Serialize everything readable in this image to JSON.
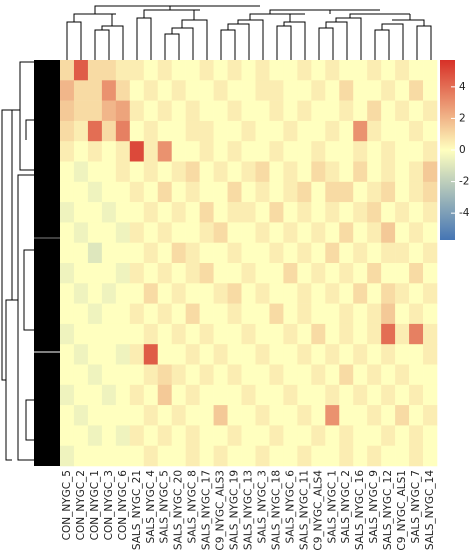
{
  "chart_data": {
    "type": "heatmap",
    "columns": [
      "CON_NYGC_5",
      "CON_NYGC_2",
      "CON_NYGC_1",
      "CON_NYGC_3",
      "CON_NYGC_6",
      "SALS_NYGC_21",
      "SALS_NYGC_4",
      "SALS_NYGC_5",
      "SALS_NYGC_20",
      "SALS_NYGC_8",
      "SALS_NYGC_17",
      "C9_NYGC_ALS3",
      "SALS_NYGC_19",
      "SALS_NYGC_13",
      "SALS_NYGC_3",
      "SALS_NYGC_18",
      "SALS_NYGC_6",
      "SALS_NYGC_11",
      "C9_NYGC_ALS4",
      "SALS_NYGC_1",
      "SALS_NYGC_2",
      "SALS_NYGC_16",
      "SALS_NYGC_9",
      "SALS_NYGC_12",
      "C9_NYGC_ALS1",
      "SALS_NYGC_7",
      "SALS_NYGC_14"
    ],
    "values": [
      [
        1,
        4.5,
        1,
        1,
        0.5,
        0.5,
        0,
        0.5,
        0,
        0,
        0.5,
        0,
        0.5,
        0,
        0.5,
        0,
        0,
        0.5,
        0,
        0.5,
        0,
        0,
        0.5,
        0,
        0.5,
        0,
        0
      ],
      [
        2,
        1,
        1,
        3,
        1,
        0,
        0.5,
        0,
        0.5,
        0,
        0,
        0.5,
        0,
        0,
        0.5,
        0.5,
        0,
        0,
        0.5,
        0,
        1,
        0,
        0,
        0.5,
        0,
        1,
        0
      ],
      [
        1.5,
        1,
        1,
        2,
        2.5,
        0.5,
        0,
        0.5,
        0,
        0.5,
        0,
        0,
        0.5,
        0,
        0,
        0.5,
        0,
        0.5,
        0,
        0,
        0.5,
        0,
        1,
        0,
        0.5,
        0,
        0.5
      ],
      [
        1,
        0.5,
        4,
        1,
        3.5,
        0,
        0.5,
        0,
        0,
        0.5,
        0.5,
        0,
        0,
        0.5,
        0,
        0,
        0.5,
        0,
        0,
        0.5,
        0,
        3,
        0.5,
        0,
        0,
        0.5,
        0
      ],
      [
        0.5,
        0,
        0.5,
        0,
        0.5,
        5,
        0.5,
        3,
        0,
        0,
        0.5,
        0,
        0.5,
        0,
        0,
        0.5,
        0,
        0,
        0.5,
        0,
        0,
        0.5,
        0,
        0.5,
        0,
        0,
        0.5
      ],
      [
        0,
        -0.5,
        0,
        0,
        0.5,
        0,
        0.5,
        0,
        0.5,
        1,
        0,
        0.5,
        0,
        0.5,
        1,
        0,
        0.5,
        0,
        1,
        0.5,
        0,
        1,
        0,
        0.5,
        0,
        0.5,
        1.5
      ],
      [
        0,
        0,
        -0.5,
        0,
        0,
        0.5,
        0,
        1,
        0,
        0.5,
        0,
        0,
        1,
        0,
        0.5,
        0,
        0.5,
        1,
        0,
        1,
        1,
        0,
        0.5,
        1,
        0,
        0.5,
        1
      ],
      [
        -0.5,
        0,
        0,
        -0.5,
        0,
        0,
        0.5,
        0,
        0.5,
        0,
        1,
        0,
        0.5,
        0.5,
        0,
        1,
        0,
        0.5,
        0,
        0.5,
        0,
        0.5,
        1,
        0,
        0.5,
        0,
        0.5
      ],
      [
        0,
        -0.5,
        0,
        0,
        -0.5,
        0.5,
        0,
        0.5,
        0,
        0,
        0.5,
        1,
        0,
        0,
        0.5,
        0,
        0.5,
        0,
        0.5,
        0,
        1,
        0,
        0.5,
        1.5,
        0,
        0.5,
        0
      ],
      [
        0,
        0,
        -1,
        0,
        0,
        0,
        0.5,
        0,
        1,
        0.5,
        0,
        0,
        0.5,
        0,
        0,
        0.5,
        0,
        0.5,
        0,
        1,
        0,
        0.5,
        0,
        0.5,
        0.5,
        0,
        0.5
      ],
      [
        -0.5,
        0,
        0,
        0,
        -0.5,
        0.5,
        0,
        0.5,
        0,
        0.5,
        1,
        0,
        0,
        0.5,
        0,
        0,
        1,
        0,
        0.5,
        0,
        0.5,
        0,
        1,
        0,
        0,
        1,
        0
      ],
      [
        0,
        -0.5,
        0,
        -0.5,
        0,
        0,
        1,
        0,
        0.5,
        0,
        0,
        0.5,
        1,
        0,
        0.5,
        0,
        0,
        0.5,
        0,
        0.5,
        0,
        1,
        0,
        1,
        0.5,
        0,
        0.5
      ],
      [
        0,
        0,
        -0.5,
        0,
        0,
        0.5,
        0,
        0.5,
        0,
        1,
        0,
        0,
        0.5,
        0,
        0,
        1,
        0,
        0.5,
        0,
        0,
        0.5,
        0,
        0.5,
        1.5,
        0,
        0.5,
        0
      ],
      [
        -0.5,
        0,
        0,
        0,
        0,
        0,
        0.5,
        0,
        0.5,
        0,
        0.5,
        0,
        0,
        0.5,
        0,
        0,
        0.5,
        0,
        1,
        0,
        0.5,
        0,
        0.5,
        4,
        0.5,
        3.5,
        0.5
      ],
      [
        0,
        -0.5,
        0,
        0,
        -0.5,
        0.5,
        4.5,
        0,
        0,
        0.5,
        0,
        0.5,
        0,
        0,
        0.5,
        0,
        0,
        0.5,
        0,
        0.5,
        0,
        0.5,
        0,
        0.5,
        0,
        0,
        0.5
      ],
      [
        0,
        0,
        -0.5,
        0,
        0,
        0,
        0.5,
        1,
        0.5,
        0,
        0.5,
        0,
        0.5,
        0,
        0,
        0.5,
        0,
        0,
        0.5,
        0,
        1,
        0,
        0.5,
        0,
        0.5,
        0,
        0
      ],
      [
        -0.5,
        0,
        0,
        -0.5,
        0,
        0.5,
        0,
        1.5,
        0,
        0.5,
        0,
        0,
        0,
        0.5,
        0,
        0,
        0.5,
        0,
        0,
        0.5,
        0,
        0.5,
        0,
        0.5,
        0,
        0.5,
        0
      ],
      [
        0,
        -0.5,
        0,
        0,
        0,
        0,
        0.5,
        0,
        0.5,
        0,
        0,
        1.5,
        0,
        0,
        0.5,
        0,
        0,
        0.5,
        0,
        3,
        0,
        0,
        0.5,
        0,
        1,
        0,
        0.5
      ],
      [
        0,
        0,
        -0.5,
        0,
        -0.5,
        0.5,
        0,
        0.5,
        0,
        0.5,
        0,
        0,
        0.5,
        0,
        0,
        0.5,
        0,
        0,
        0.5,
        0,
        0.5,
        0,
        0,
        0.5,
        0,
        0.5,
        0
      ],
      [
        -0.5,
        0,
        0,
        0,
        0,
        0,
        0.5,
        0,
        0,
        0.5,
        0,
        0.5,
        0,
        0,
        0.5,
        0,
        0,
        0.5,
        0,
        0,
        0.5,
        0,
        0.5,
        0,
        0,
        0.5,
        0
      ]
    ],
    "colorscale": [
      "#4575b4",
      "#ffffbf",
      "#d73027"
    ],
    "zlim": [
      -5.7,
      5.7
    ],
    "colorbar_ticks": [
      -4,
      -2,
      0,
      2,
      4
    ]
  }
}
